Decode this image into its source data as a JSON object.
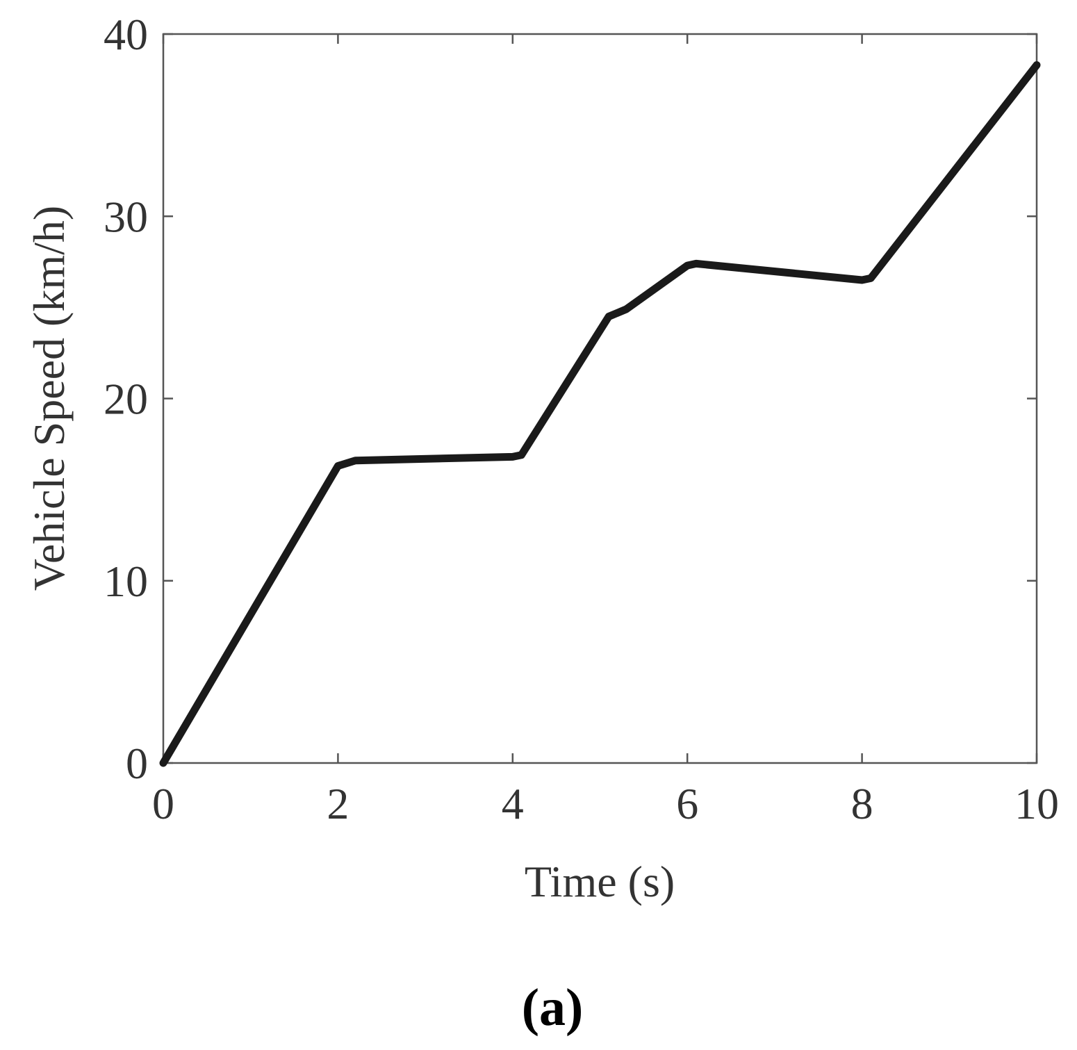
{
  "chart_data": {
    "type": "line",
    "xlabel": "Time (s)",
    "ylabel": "Vehicle Speed (km/h)",
    "xlim": [
      0,
      10
    ],
    "ylim": [
      0,
      40
    ],
    "xticks": [
      "0",
      "2",
      "4",
      "6",
      "8",
      "10"
    ],
    "yticks": [
      "0",
      "10",
      "20",
      "30",
      "40"
    ],
    "grid": false,
    "series": [
      {
        "color": "#1a1a1a",
        "x": [
          0,
          2.0,
          2.2,
          4.0,
          4.1,
          5.1,
          5.3,
          6.0,
          6.1,
          8.0,
          8.1,
          10.0
        ],
        "y": [
          0,
          16.3,
          16.6,
          16.8,
          16.9,
          24.5,
          24.9,
          27.3,
          27.4,
          26.5,
          26.6,
          38.3
        ]
      }
    ],
    "panel_label": "(a)"
  }
}
